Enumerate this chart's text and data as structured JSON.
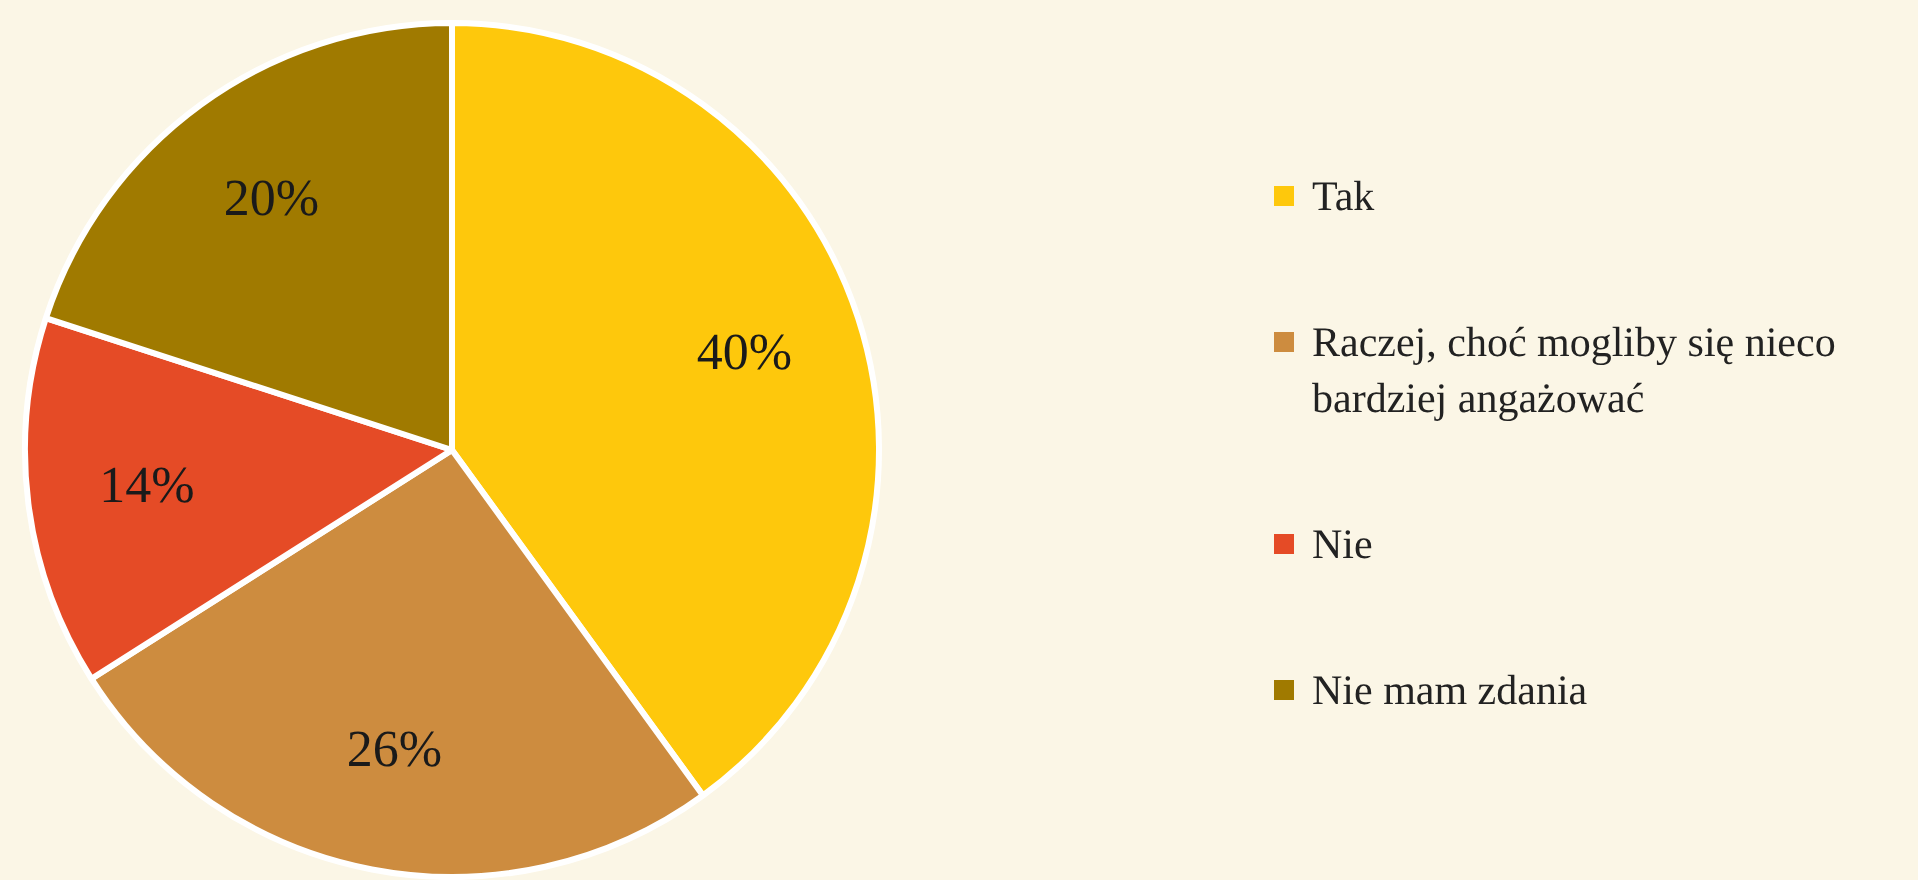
{
  "chart_data": {
    "type": "pie",
    "categories": [
      "Tak",
      "Raczej, choć mogliby się nieco bardziej angażować",
      "Nie",
      "Nie mam zdania"
    ],
    "values": [
      40,
      26,
      14,
      20
    ],
    "colors": [
      "#fec80c",
      "#cd8c3f",
      "#e54b26",
      "#a07a00"
    ],
    "value_labels": [
      "40%",
      "26%",
      "14%",
      "20%"
    ],
    "legend": "right"
  }
}
